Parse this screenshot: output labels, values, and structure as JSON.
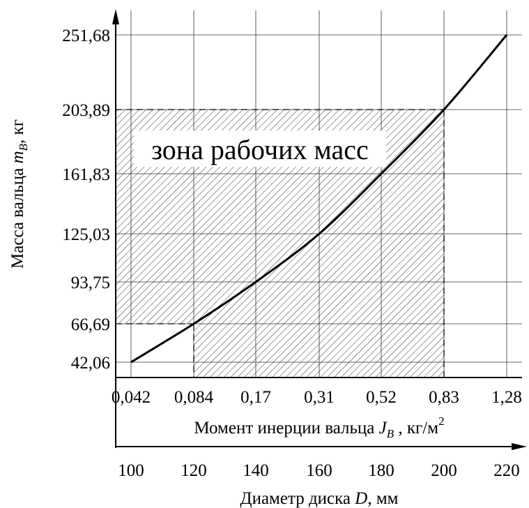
{
  "chart_data": {
    "type": "line",
    "ylabel_main": "Масса вальца ",
    "ylabel_var": "m",
    "ylabel_sub": "B",
    "ylabel_unit": ", кг",
    "y_ticks": [
      "42,06",
      "66,69",
      "93,75",
      "125,03",
      "161,83",
      "203,89",
      "251,68"
    ],
    "x1_ticks": [
      "0,042",
      "0,084",
      "0,17",
      "0,31",
      "0,52",
      "0,83",
      "1,28"
    ],
    "x1label_main": "Момент инерции вальца ",
    "x1label_var": "J",
    "x1label_sub": "B",
    "x1label_unit": " , кг/м",
    "x1label_sup": "2",
    "x2_ticks": [
      "100",
      "120",
      "140",
      "160",
      "180",
      "200",
      "220"
    ],
    "x2label_main": "Диаметр диска ",
    "x2label_var": "D",
    "x2label_unit": ", мм",
    "zone_label": "зона рабочих масс",
    "series": [
      {
        "x_diameter_mm": [
          100,
          120,
          140,
          160,
          180,
          200,
          220
        ],
        "y_mass_kg": [
          42.06,
          66.69,
          93.75,
          125.03,
          161.83,
          203.89,
          251.68
        ]
      }
    ],
    "zone": {
      "x_from_mm": 100,
      "x_to_mm": 200,
      "y_to_kg": 203.89,
      "knee_x_mm": 120,
      "knee_y_kg": 66.69
    },
    "grid": true
  }
}
